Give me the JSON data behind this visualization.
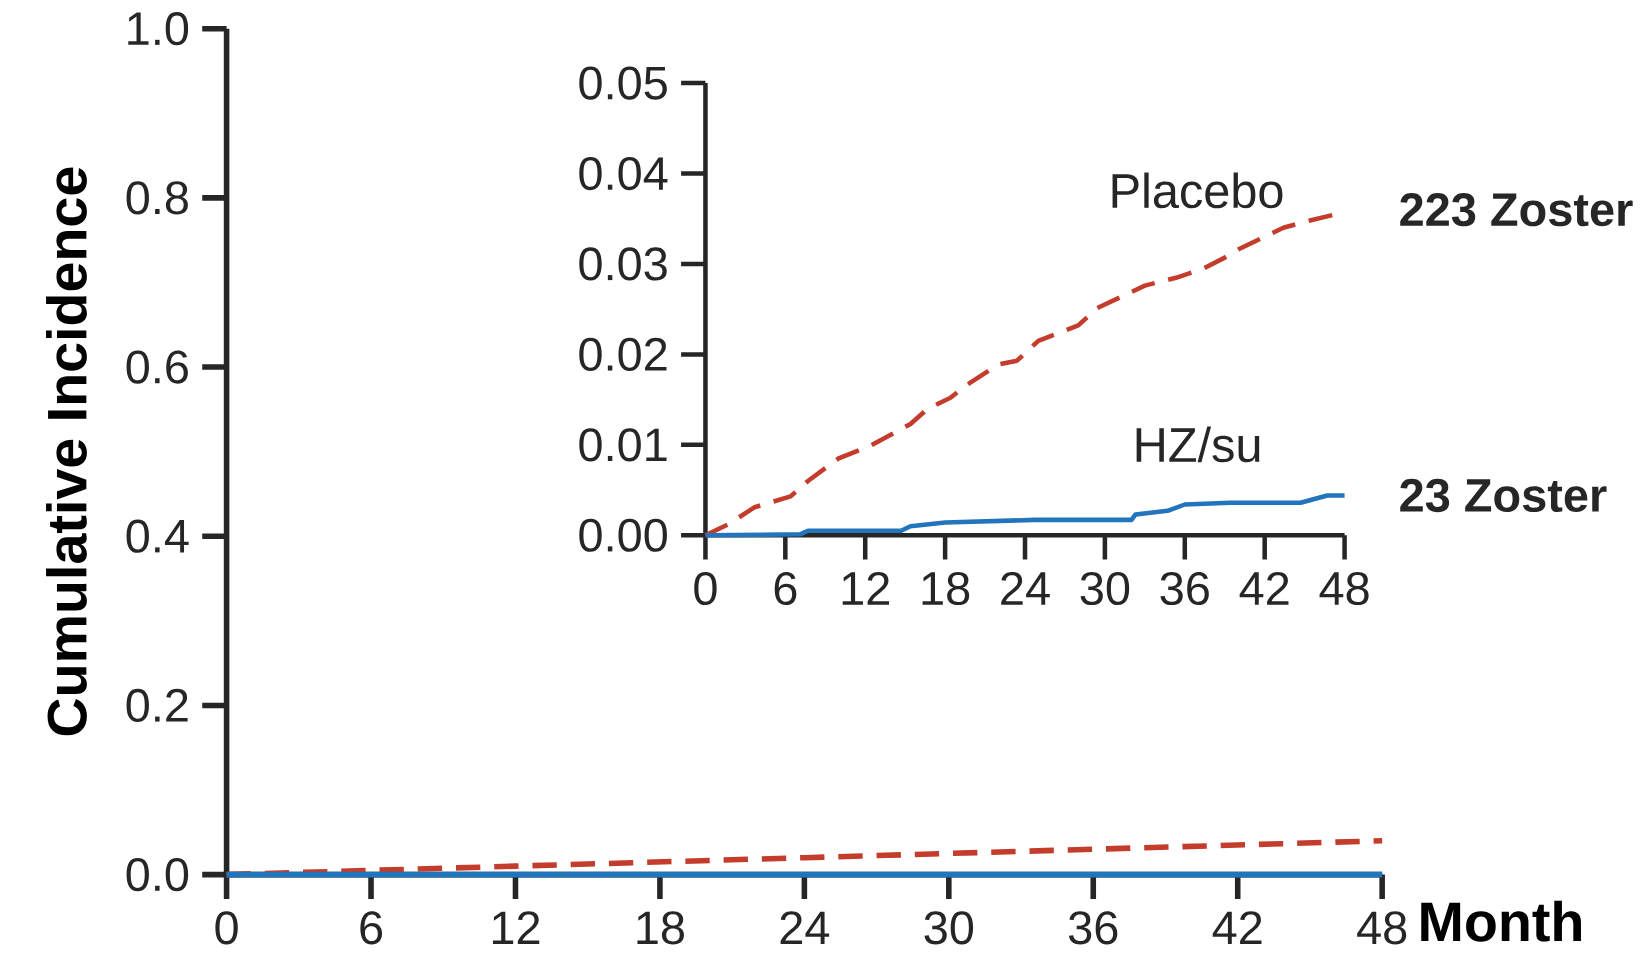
{
  "chart_data": [
    {
      "type": "line",
      "xlabel": "Month",
      "ylabel": "Cumulative Incidence",
      "xlim": [
        0,
        48
      ],
      "ylim": [
        0,
        1
      ],
      "xticks": [
        0,
        6,
        12,
        18,
        24,
        30,
        36,
        42,
        48
      ],
      "yticks": [
        {
          "value": 0,
          "label": "0.0"
        },
        {
          "value": 0.2,
          "label": "0.2"
        },
        {
          "value": 0.4,
          "label": "0.4"
        },
        {
          "value": 0.6,
          "label": "0.6"
        },
        {
          "value": 0.8,
          "label": "0.8"
        },
        {
          "value": 1,
          "label": "1.0"
        }
      ],
      "legend": false,
      "series": [
        {
          "color": "#c43c2c",
          "line_style": "dashed",
          "x": [
            0,
            12,
            24,
            36,
            48
          ],
          "values": [
            0,
            0.01,
            0.02,
            0.03,
            0.04
          ]
        },
        {
          "color": "#2275bd",
          "line_style": "solid",
          "x": [
            0,
            12,
            24,
            36,
            48
          ],
          "values": [
            0,
            0,
            0,
            0,
            0
          ]
        }
      ]
    },
    {
      "type": "line",
      "xlim": [
        0,
        48
      ],
      "ylim": [
        0,
        0.05
      ],
      "xticks": [
        0,
        6,
        12,
        18,
        24,
        30,
        36,
        42,
        48
      ],
      "yticks": [
        {
          "value": 0,
          "label": "0.00"
        },
        {
          "value": 0.01,
          "label": "0.01"
        },
        {
          "value": 0.02,
          "label": "0.02"
        },
        {
          "value": 0.03,
          "label": "0.03"
        },
        {
          "value": 0.04,
          "label": "0.04"
        },
        {
          "value": 0.05,
          "label": "0.05"
        }
      ],
      "legend": false,
      "annotations": [
        {
          "text": "223 Zoster",
          "x": 48,
          "y": 0.036
        },
        {
          "text": "23 Zoster",
          "x": 48,
          "y": 0.0044
        }
      ],
      "series": [
        {
          "name": "Placebo",
          "color": "#c43c2c",
          "line_style": "dashed",
          "x": [
            0,
            1.7,
            3.7,
            6.4,
            7.7,
            10,
            12.4,
            15.4,
            16.7,
            18.4,
            19.7,
            22,
            23.4,
            25,
            28,
            29.4,
            33,
            35.4,
            37.4,
            39,
            40,
            43.4,
            45.4,
            47.9
          ],
          "values": [
            0,
            0.0012,
            0.0031,
            0.0043,
            0.006,
            0.0085,
            0.0099,
            0.0123,
            0.014,
            0.0152,
            0.0167,
            0.0189,
            0.0193,
            0.0215,
            0.0232,
            0.0251,
            0.0276,
            0.0285,
            0.0295,
            0.0307,
            0.0316,
            0.034,
            0.0348,
            0.0357
          ]
        },
        {
          "name": "HZ/su",
          "color": "#2275bd",
          "line_style": "solid",
          "x": [
            0,
            7.1,
            7.7,
            14.7,
            15.4,
            18,
            24.7,
            32,
            32.3,
            34.7,
            36,
            39.4,
            44.7,
            46.7,
            48
          ],
          "values": [
            0,
            0.0001,
            0.0005,
            0.0005,
            0.001,
            0.0014,
            0.0017,
            0.0017,
            0.0023,
            0.0027,
            0.0034,
            0.0036,
            0.0036,
            0.0044,
            0.0044
          ]
        }
      ]
    }
  ]
}
